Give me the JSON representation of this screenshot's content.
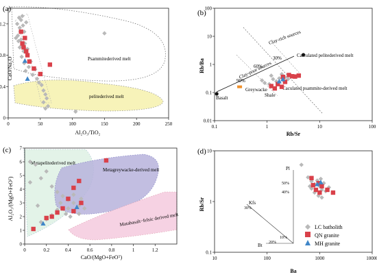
{
  "colors": {
    "lc": "#b9b9b9",
    "qn": "#d9414a",
    "mh": "#3f86c8",
    "orange": "#f0902a",
    "black": "#111111",
    "yellow": "#f7f3b9",
    "green": "#e3f3e8",
    "purple": "#b7b3dc",
    "pink": "#f6d2e3"
  },
  "chart_data": [
    {
      "panel": "(a)",
      "type": "scatter",
      "xlabel": "Al₂O₃/TiO₂",
      "ylabel": "CaO/Na₂O",
      "xlim": [
        0,
        250
      ],
      "ylim": [
        0,
        1.4
      ],
      "xticks": [
        "0",
        "50",
        "100",
        "150",
        "200",
        "250"
      ],
      "yticks": [
        "0",
        "0.4",
        "0.8",
        "1.2"
      ],
      "region_labels": [
        "Psammitederived melt",
        "pelitederived melt"
      ],
      "series": [
        {
          "key": "lc",
          "points": [
            [
              12,
              1.02
            ],
            [
              14,
              1.2
            ],
            [
              15,
              1.05
            ],
            [
              16,
              0.98
            ],
            [
              17,
              1.28
            ],
            [
              18,
              1.15
            ],
            [
              18,
              0.9
            ],
            [
              19,
              1.1
            ],
            [
              20,
              1.25
            ],
            [
              20,
              1.0
            ],
            [
              21,
              0.78
            ],
            [
              22,
              1.3
            ],
            [
              22,
              0.92
            ],
            [
              23,
              1.18
            ],
            [
              24,
              0.85
            ],
            [
              25,
              0.7
            ],
            [
              25,
              1.1
            ],
            [
              26,
              0.95
            ],
            [
              27,
              0.6
            ],
            [
              28,
              1.22
            ],
            [
              30,
              0.88
            ],
            [
              32,
              0.65
            ],
            [
              35,
              0.72
            ],
            [
              38,
              0.55
            ],
            [
              42,
              0.62
            ],
            [
              45,
              0.5
            ],
            [
              48,
              0.45
            ],
            [
              52,
              0.42
            ],
            [
              55,
              0.35
            ],
            [
              58,
              0.3
            ],
            [
              60,
              0.25
            ],
            [
              62,
              0.15
            ],
            [
              58,
              0.12
            ],
            [
              55,
              0.2
            ],
            [
              150,
              1.08
            ],
            [
              105,
              0.08
            ]
          ]
        },
        {
          "key": "qn",
          "points": [
            [
              20,
              1.1
            ],
            [
              22,
              0.95
            ],
            [
              24,
              0.9
            ],
            [
              26,
              1.02
            ],
            [
              28,
              0.85
            ],
            [
              30,
              0.8
            ],
            [
              33,
              0.72
            ],
            [
              40,
              0.63
            ],
            [
              50,
              0.56
            ],
            [
              65,
              0.68
            ]
          ]
        },
        {
          "key": "mh",
          "points": [
            [
              26,
              0.73
            ],
            [
              30,
              0.5
            ]
          ]
        }
      ]
    },
    {
      "panel": "(b)",
      "type": "scatter",
      "xlabel": "Rb/Sr",
      "ylabel": "Rb/Ba",
      "log_x": true,
      "log_y": true,
      "xlim": [
        0.1,
        100
      ],
      "ylim": [
        0.01,
        100
      ],
      "xticks": [
        "0.1",
        "1",
        "10",
        "100"
      ],
      "yticks": [
        "0.01",
        "0.1",
        "1",
        "10",
        "100"
      ],
      "region_labels": [
        "Clay-poor sources",
        "Clay-rich sources"
      ],
      "annotations": [
        "Calculated pelitederived melt",
        "Caculated psammite-derived melt",
        "Basalt",
        "Greywacke",
        "Shale",
        "90%",
        "60%",
        "30%"
      ],
      "series": [
        {
          "key": "lc",
          "points": [
            [
              0.8,
              0.27
            ],
            [
              0.9,
              0.22
            ],
            [
              1.1,
              0.2
            ],
            [
              1.3,
              0.3
            ],
            [
              1.5,
              0.25
            ],
            [
              1.7,
              0.32
            ],
            [
              2.0,
              0.28
            ],
            [
              2.2,
              0.35
            ],
            [
              2.5,
              0.3
            ],
            [
              1.2,
              0.4
            ],
            [
              1.9,
              0.45
            ],
            [
              3.0,
              0.38
            ]
          ]
        },
        {
          "key": "qn",
          "points": [
            [
              1.2,
              0.17
            ],
            [
              1.4,
              0.14
            ],
            [
              1.6,
              0.2
            ],
            [
              1.9,
              0.16
            ],
            [
              2.2,
              0.24
            ],
            [
              2.6,
              0.42
            ],
            [
              3.0,
              0.38
            ],
            [
              3.4,
              0.37
            ],
            [
              4.0,
              0.4
            ],
            [
              2.0,
              0.36
            ]
          ]
        },
        {
          "key": "mh",
          "points": [
            [
              1.7,
              0.25
            ],
            [
              2.0,
              0.3
            ]
          ]
        },
        {
          "key": "orange",
          "points": [
            [
              0.3,
              0.16
            ]
          ]
        },
        {
          "key": "black",
          "points": [
            [
              0.11,
              0.09
            ],
            [
              4.9,
              2.2
            ]
          ]
        }
      ]
    },
    {
      "panel": "(c)",
      "type": "scatter",
      "xlabel": "CaO/(MgO+FeOᵀ)",
      "ylabel": "Al₂O₃/(MgO+FeOᵀ)",
      "xlim": [
        0,
        1.4
      ],
      "ylim": [
        0,
        7
      ],
      "xticks": [
        "0",
        "0.2",
        "0.4",
        "0.6",
        "0.8",
        "1",
        "1.2"
      ],
      "yticks": [
        "0",
        "1",
        "2",
        "3",
        "4",
        "5",
        "6",
        "7"
      ],
      "region_labels": [
        "Metapelitederived melt",
        "Metagreywacke-derived melt",
        "Matabasalt−felsic derived melt"
      ],
      "series": [
        {
          "key": "lc",
          "points": [
            [
              0.05,
              6.0
            ],
            [
              0.1,
              5.8
            ],
            [
              0.2,
              5.3
            ],
            [
              0.15,
              4.8
            ],
            [
              0.05,
              4.5
            ],
            [
              0.25,
              4.2
            ],
            [
              0.3,
              3.8
            ],
            [
              0.35,
              3.5
            ],
            [
              0.4,
              3.2
            ],
            [
              0.45,
              3.0
            ],
            [
              0.5,
              2.8
            ],
            [
              0.55,
              2.6
            ],
            [
              0.3,
              2.5
            ],
            [
              0.38,
              2.2
            ],
            [
              0.42,
              2.0
            ],
            [
              0.5,
              2.2
            ],
            [
              0.25,
              2.1
            ],
            [
              0.2,
              1.8
            ],
            [
              0.15,
              1.6
            ],
            [
              0.12,
              2.8
            ],
            [
              0.45,
              3.6
            ],
            [
              0.52,
              3.3
            ],
            [
              0.4,
              2.6
            ],
            [
              0.33,
              3.0
            ]
          ]
        },
        {
          "key": "qn",
          "points": [
            [
              0.08,
              1.1
            ],
            [
              0.2,
              1.9
            ],
            [
              0.25,
              2.0
            ],
            [
              0.3,
              2.3
            ],
            [
              0.35,
              2.6
            ],
            [
              0.4,
              3.3
            ],
            [
              0.45,
              4.1
            ],
            [
              0.5,
              4.6
            ],
            [
              0.52,
              3.0
            ],
            [
              0.45,
              2.4
            ],
            [
              0.75,
              6.1
            ]
          ]
        },
        {
          "key": "mh",
          "points": [
            [
              0.17,
              1.5
            ],
            [
              0.48,
              2.7
            ]
          ]
        }
      ]
    },
    {
      "panel": "(d)",
      "type": "scatter",
      "xlabel": "Ba",
      "ylabel": "Rb/Sr",
      "log_x": true,
      "log_y": true,
      "xlim": [
        10,
        10000
      ],
      "ylim": [
        0.1,
        10
      ],
      "xticks": [
        "10",
        "100",
        "1000",
        "10000"
      ],
      "yticks": [
        "0.1",
        "1",
        "10"
      ],
      "annotations": [
        "Pl",
        "Kfs",
        "Bt",
        "10%",
        "20%",
        "30%",
        "40%",
        "50%"
      ],
      "series": [
        {
          "key": "lc",
          "points": [
            [
              450,
              5.3
            ],
            [
              600,
              3.0
            ],
            [
              700,
              2.5
            ],
            [
              800,
              2.2
            ],
            [
              900,
              2.6
            ],
            [
              1000,
              2.0
            ],
            [
              1100,
              1.7
            ],
            [
              1200,
              2.3
            ],
            [
              800,
              1.5
            ],
            [
              950,
              1.3
            ],
            [
              1100,
              1.2
            ],
            [
              1300,
              1.6
            ],
            [
              1500,
              1.9
            ],
            [
              700,
              1.8
            ],
            [
              650,
              2.0
            ],
            [
              1050,
              2.8
            ]
          ]
        },
        {
          "key": "qn",
          "points": [
            [
              700,
              2.9
            ],
            [
              850,
              1.7
            ],
            [
              950,
              2.3
            ],
            [
              1000,
              1.5
            ],
            [
              1100,
              2.0
            ],
            [
              1400,
              1.7
            ],
            [
              1800,
              1.5
            ],
            [
              750,
              2.1
            ]
          ]
        },
        {
          "key": "mh",
          "points": [
            [
              900,
              2.2
            ],
            [
              1050,
              2.4
            ]
          ]
        }
      ]
    }
  ],
  "legend": [
    {
      "key": "lc",
      "label": "LC batholith"
    },
    {
      "key": "qn",
      "label": "QN  granite"
    },
    {
      "key": "mh",
      "label": "MH  granite"
    }
  ]
}
